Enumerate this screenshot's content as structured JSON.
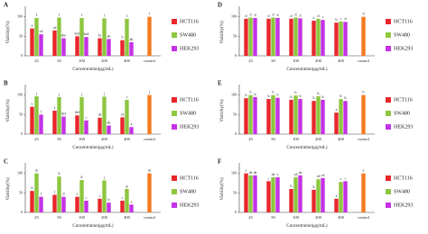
{
  "chart_data": [
    {
      "type": "bar",
      "title": "A",
      "y_label": "Viability(%)",
      "x_label": "Concentration(μg/mL)",
      "categories": [
        "25",
        "50",
        "100",
        "200",
        "400",
        "control"
      ],
      "ylim": [
        0,
        120
      ],
      "yticks": [
        0,
        50,
        100
      ],
      "series": [
        {
          "name": "HCT116",
          "color": "#e8262a",
          "values": [
            70,
            65,
            50,
            45,
            40,
            null
          ],
          "labels": [
            "a",
            "cd",
            "bcd",
            "bc",
            "b",
            null
          ]
        },
        {
          "name": "SW480",
          "color": "#8dc63f",
          "values": [
            97,
            98,
            97,
            96,
            95,
            null
          ],
          "labels": [
            "f",
            "f",
            "f",
            "f",
            "f",
            null
          ]
        },
        {
          "name": "HEK293",
          "color": "#c531e6",
          "values": [
            55,
            45,
            48,
            43,
            35,
            null
          ],
          "labels": [
            "cd",
            "abc",
            "bcd",
            "ab",
            "ab",
            null
          ]
        },
        {
          "color": "#f47b20",
          "values": [
            null,
            null,
            null,
            null,
            null,
            100
          ],
          "labels": [
            null,
            null,
            null,
            null,
            null,
            "f"
          ]
        }
      ]
    },
    {
      "type": "bar",
      "title": "B",
      "y_label": "Viability(%)",
      "x_label": "Concentration(μg/mL)",
      "categories": [
        "25",
        "50",
        "100",
        "200",
        "400",
        "control"
      ],
      "ylim": [
        0,
        120
      ],
      "yticks": [
        0,
        50,
        100
      ],
      "series": [
        {
          "name": "HCT116",
          "color": "#e8262a",
          "values": [
            70,
            60,
            48,
            42,
            43,
            null
          ],
          "labels": [
            "e",
            "f",
            "def",
            "de",
            "cd",
            null
          ]
        },
        {
          "name": "SW480",
          "color": "#8dc63f",
          "values": [
            97,
            95,
            95,
            96,
            88,
            null
          ],
          "labels": [
            "j",
            "j",
            "j",
            "j",
            "i",
            null
          ]
        },
        {
          "name": "HEK293",
          "color": "#c531e6",
          "values": [
            50,
            45,
            35,
            22,
            18,
            null
          ],
          "labels": [
            "f",
            "def",
            "c",
            "ab",
            "a",
            null
          ]
        },
        {
          "color": "#f47b20",
          "values": [
            null,
            null,
            null,
            null,
            null,
            100
          ],
          "labels": [
            null,
            null,
            null,
            null,
            null,
            "j"
          ]
        }
      ]
    },
    {
      "type": "bar",
      "title": "C",
      "y_label": "Viability(%)",
      "x_label": "Concentration(μg/mL)",
      "categories": [
        "25",
        "50",
        "100",
        "200",
        "400",
        "control"
      ],
      "ylim": [
        0,
        120
      ],
      "yticks": [
        0,
        50,
        100
      ],
      "series": [
        {
          "name": "HCT116",
          "color": "#e8262a",
          "values": [
            55,
            45,
            40,
            35,
            30,
            null
          ],
          "labels": [
            "h",
            "f",
            "e",
            "c",
            "c",
            null
          ]
        },
        {
          "name": "SW480",
          "color": "#8dc63f",
          "values": [
            100,
            92,
            83,
            82,
            60,
            null
          ],
          "labels": [
            "m",
            "k",
            "k",
            "j",
            "g",
            null
          ]
        },
        {
          "name": "HEK293",
          "color": "#c531e6",
          "values": [
            40,
            40,
            30,
            25,
            20,
            null
          ],
          "labels": [
            "f",
            "d",
            "c",
            "b",
            "a",
            null
          ]
        },
        {
          "color": "#f47b20",
          "values": [
            null,
            null,
            null,
            null,
            null,
            100
          ],
          "labels": [
            null,
            null,
            null,
            null,
            null,
            "m"
          ]
        }
      ]
    },
    {
      "type": "bar",
      "title": "D",
      "y_label": "Viability(%)",
      "x_label": "Concentration(μg/mL)",
      "categories": [
        "25",
        "50",
        "100",
        "200",
        "400",
        "control"
      ],
      "ylim": [
        0,
        120
      ],
      "yticks": [
        0,
        50,
        100
      ],
      "series": [
        {
          "name": "HCT116",
          "color": "#e8262a",
          "values": [
            95,
            95,
            95,
            90,
            85,
            null
          ],
          "labels": [
            "d",
            "d",
            "d",
            "a",
            "b",
            null
          ]
        },
        {
          "name": "SW480",
          "color": "#8dc63f",
          "values": [
            98,
            98,
            98,
            95,
            88,
            null
          ],
          "labels": [
            "d",
            "d",
            "d",
            "d",
            "c",
            null
          ]
        },
        {
          "name": "HEK293",
          "color": "#c531e6",
          "values": [
            97,
            97,
            96,
            92,
            87,
            null
          ],
          "labels": [
            "d",
            "d",
            "d",
            "c",
            "d",
            null
          ]
        },
        {
          "color": "#f47b20",
          "values": [
            null,
            null,
            null,
            null,
            null,
            100
          ],
          "labels": [
            null,
            null,
            null,
            null,
            null,
            "d"
          ]
        }
      ]
    },
    {
      "type": "bar",
      "title": "E",
      "y_label": "Viability(%)",
      "x_label": "Concentration(μg/mL)",
      "categories": [
        "25",
        "50",
        "100",
        "200",
        "400",
        "control"
      ],
      "ylim": [
        0,
        120
      ],
      "yticks": [
        0,
        50,
        100
      ],
      "series": [
        {
          "name": "HCT116",
          "color": "#e8262a",
          "values": [
            92,
            90,
            88,
            85,
            55,
            null
          ],
          "labels": [
            "b",
            "b",
            "b",
            "b",
            "a",
            null
          ]
        },
        {
          "name": "SW480",
          "color": "#8dc63f",
          "values": [
            100,
            100,
            99,
            97,
            90,
            null
          ],
          "labels": [
            "b",
            "b",
            "b",
            "b",
            "b",
            null
          ]
        },
        {
          "name": "HEK293",
          "color": "#c531e6",
          "values": [
            95,
            93,
            90,
            88,
            85,
            null
          ],
          "labels": [
            "b",
            "b",
            "b",
            "b",
            "b",
            null
          ]
        },
        {
          "color": "#f47b20",
          "values": [
            null,
            null,
            null,
            null,
            null,
            100
          ],
          "labels": [
            null,
            null,
            null,
            null,
            null,
            "b"
          ]
        }
      ]
    },
    {
      "type": "bar",
      "title": "F",
      "y_label": "Viability(%)",
      "x_label": "Concentration(μg/mL)",
      "categories": [
        "25",
        "50",
        "100",
        "200",
        "400",
        "control"
      ],
      "ylim": [
        0,
        120
      ],
      "yticks": [
        0,
        50,
        100
      ],
      "series": [
        {
          "name": "HCT116",
          "color": "#e8262a",
          "values": [
            100,
            80,
            60,
            58,
            35,
            null
          ],
          "labels": [
            "e",
            "c",
            "b",
            "b",
            "a",
            null
          ]
        },
        {
          "name": "SW480",
          "color": "#8dc63f",
          "values": [
            95,
            90,
            90,
            85,
            78,
            null
          ],
          "labels": [
            "de",
            "de",
            "cd",
            "cd",
            "c",
            null
          ]
        },
        {
          "name": "HEK293",
          "color": "#c531e6",
          "values": [
            95,
            90,
            95,
            88,
            80,
            null
          ],
          "labels": [
            "de",
            "e",
            "de",
            "cd",
            "c",
            null
          ]
        },
        {
          "color": "#f47b20",
          "values": [
            null,
            null,
            null,
            null,
            null,
            100
          ],
          "labels": [
            null,
            null,
            null,
            null,
            null,
            "e"
          ]
        }
      ]
    }
  ]
}
